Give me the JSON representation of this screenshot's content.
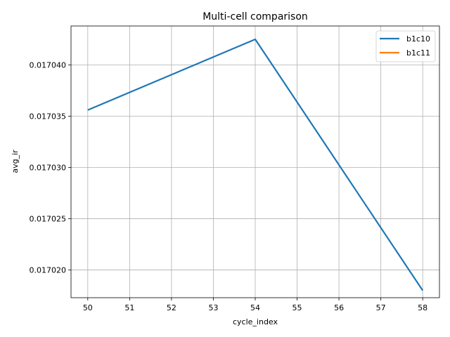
{
  "chart_data": {
    "type": "line",
    "title": "Multi-cell comparison",
    "xlabel": "cycle_index",
    "ylabel": "avg_ir",
    "xlim": [
      49.6,
      58.4
    ],
    "ylim": [
      0.0170173,
      0.0170438
    ],
    "xticks": [
      50,
      51,
      52,
      53,
      54,
      55,
      56,
      57,
      58
    ],
    "xtick_labels": [
      "50",
      "51",
      "52",
      "53",
      "54",
      "55",
      "56",
      "57",
      "58"
    ],
    "yticks": [
      0.01702,
      0.017025,
      0.01703,
      0.017035,
      0.01704
    ],
    "ytick_labels": [
      "0.017020",
      "0.017025",
      "0.017030",
      "0.017035",
      "0.017040"
    ],
    "grid": true,
    "legend_position": "top-right",
    "series": [
      {
        "name": "b1c10",
        "color": "#1f77b4",
        "x": [
          50,
          54,
          58
        ],
        "y": [
          0.0170356,
          0.0170425,
          0.017018
        ]
      },
      {
        "name": "b1c11",
        "color": "#ff7f0e",
        "x": [],
        "y": []
      }
    ]
  }
}
